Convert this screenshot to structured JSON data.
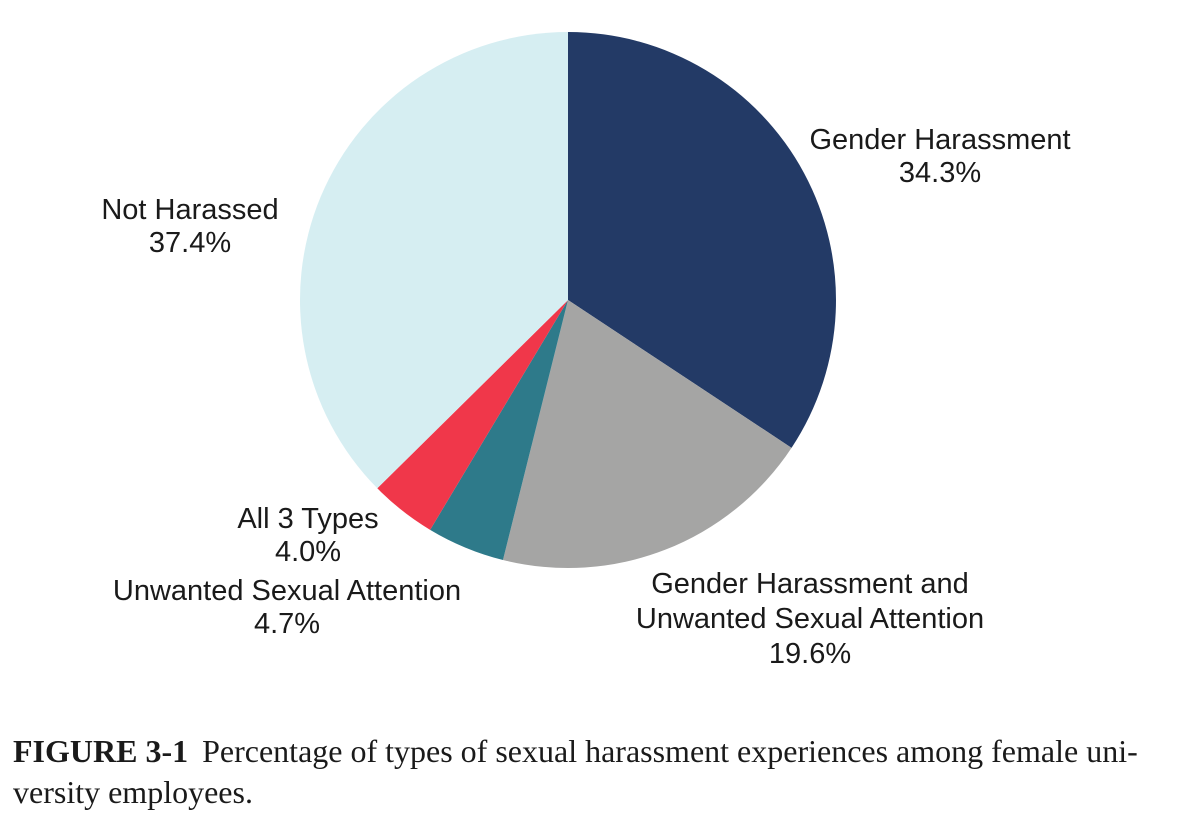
{
  "chart_data": {
    "type": "pie",
    "title": "",
    "direction": "clockwise",
    "start_angle_deg": 0,
    "legend": "none",
    "slices": [
      {
        "id": "gender-harassment",
        "label": "Gender Harassment",
        "value": 34.3,
        "pct_label": "34.3%",
        "color": "#233A66"
      },
      {
        "id": "gender-harassment-and-unwanted-sexual-attention",
        "label": "Gender Harassment and Unwanted Sexual Attention",
        "value": 19.6,
        "pct_label": "19.6%",
        "color": "#A5A5A4"
      },
      {
        "id": "unwanted-sexual-attention",
        "label": "Unwanted Sexual Attention",
        "value": 4.7,
        "pct_label": "4.7%",
        "color": "#2E7A8A"
      },
      {
        "id": "all-3-types",
        "label": "All 3 Types",
        "value": 4.0,
        "pct_label": "4.0%",
        "color": "#F0374A"
      },
      {
        "id": "not-harassed",
        "label": "Not Harassed",
        "value": 37.4,
        "pct_label": "37.4%",
        "color": "#D6EEF2"
      }
    ]
  },
  "labels": {
    "gender_harassment": {
      "line1": "Gender Harassment",
      "line2": "34.3%"
    },
    "not_harassed": {
      "line1": "Not Harassed",
      "line2": "37.4%"
    },
    "all_3_types": {
      "line1": "All 3 Types",
      "line2": "4.0%"
    },
    "unwanted_sexual_attention": {
      "line1": "Unwanted Sexual Attention",
      "line2": "4.7%"
    },
    "gh_and_usa": {
      "line1": "Gender Harassment and",
      "line2": "Unwanted Sexual Attention",
      "line3": "19.6%"
    }
  },
  "caption": {
    "tag": "FIGURE 3-1",
    "line1": "Percentage of types of sexual harassment experiences among female uni-",
    "line2": "versity employees."
  }
}
